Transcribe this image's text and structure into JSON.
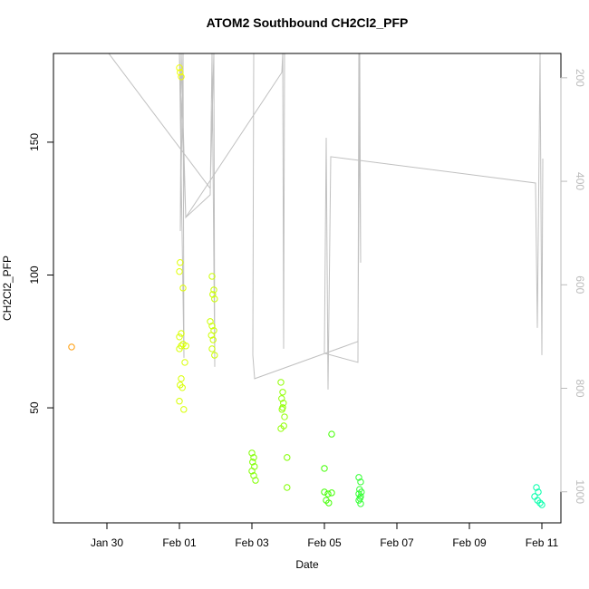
{
  "chart_data": {
    "type": "scatter",
    "title": "ATOM2 Southbound CH2Cl2_PFP",
    "x_label": "Date",
    "y_label": "CH2Cl2_PFP",
    "x": [
      29.025,
      32.0,
      32.02,
      32.05,
      32.02,
      32.0,
      32.05,
      32.0,
      32.1,
      32.05,
      32.0,
      32.15,
      32.05,
      32.02,
      32.08,
      32.0,
      32.12,
      32.1,
      32.18,
      32.9,
      32.95,
      32.92,
      32.97,
      32.85,
      32.9,
      32.95,
      32.88,
      32.93,
      32.9,
      32.97,
      34.0,
      34.05,
      34.02,
      34.07,
      34.0,
      34.05,
      34.1,
      34.8,
      34.85,
      34.82,
      34.87,
      34.85,
      34.83,
      34.9,
      34.88,
      34.8,
      34.97,
      34.97,
      36.0,
      36.0,
      36.1,
      36.05,
      36.12,
      36.2,
      36.2,
      36.95,
      37.0,
      36.97,
      37.02,
      36.95,
      37.0,
      36.98,
      36.95,
      37.0,
      41.85,
      41.9,
      41.8,
      41.88,
      41.95,
      42.0
    ],
    "values": [
      72.9,
      178.0,
      176.3,
      174.6,
      104.7,
      101.3,
      78.0,
      76.7,
      74.0,
      73.3,
      72.2,
      67.1,
      61.0,
      58.6,
      57.6,
      52.5,
      49.4,
      95.1,
      73.3,
      99.5,
      94.4,
      92.7,
      91.0,
      82.5,
      80.8,
      79.1,
      77.3,
      75.6,
      72.2,
      69.8,
      33.0,
      31.3,
      29.6,
      27.9,
      26.2,
      24.5,
      22.7,
      59.6,
      55.9,
      53.5,
      51.8,
      50.1,
      49.4,
      46.6,
      43.2,
      42.2,
      31.3,
      20.0,
      27.2,
      18.3,
      17.6,
      15.2,
      14.2,
      18.0,
      40.1,
      23.8,
      22.1,
      19.3,
      18.3,
      17.6,
      16.6,
      15.9,
      15.2,
      13.9,
      20.0,
      18.3,
      16.6,
      15.2,
      14.2,
      13.5
    ],
    "colors": [
      "#ff9900",
      "#f0ff00",
      "#f0ff00",
      "#f0ff00",
      "#e0ff00",
      "#e0ff00",
      "#d8ff00",
      "#d8ff00",
      "#d8ff00",
      "#d8ff00",
      "#d8ff00",
      "#d8ff00",
      "#d8ff00",
      "#d8ff00",
      "#d8ff00",
      "#d8ff00",
      "#d8ff00",
      "#e0ff00",
      "#d8ff00",
      "#ccff00",
      "#ccff00",
      "#ccff00",
      "#ccff00",
      "#ccff00",
      "#ccff00",
      "#ccff00",
      "#ccff00",
      "#ccff00",
      "#ccff00",
      "#ccff00",
      "#80ff00",
      "#80ff00",
      "#80ff00",
      "#80ff00",
      "#80ff00",
      "#80ff00",
      "#80ff00",
      "#90ff00",
      "#90ff00",
      "#90ff00",
      "#90ff00",
      "#90ff00",
      "#90ff00",
      "#90ff00",
      "#90ff00",
      "#90ff00",
      "#80ff00",
      "#80ff00",
      "#40ff00",
      "#40ff00",
      "#40ff00",
      "#40ff00",
      "#40ff00",
      "#40ff00",
      "#40ff00",
      "#33ff33",
      "#33ff33",
      "#33ff33",
      "#33ff33",
      "#33ff33",
      "#33ff33",
      "#33ff33",
      "#33ff33",
      "#33ff33",
      "#00ffaa",
      "#00ffaa",
      "#00ffaa",
      "#00ffaa",
      "#00ffaa",
      "#00ffaa"
    ],
    "xlim": [
      28.525,
      42.525
    ],
    "xticks": [
      {
        "value": 30,
        "label": "Jan 30"
      },
      {
        "value": 32,
        "label": "Feb 01"
      },
      {
        "value": 34,
        "label": "Feb 03"
      },
      {
        "value": 36,
        "label": "Feb 05"
      },
      {
        "value": 38,
        "label": "Feb 07"
      },
      {
        "value": 40,
        "label": "Feb 09"
      },
      {
        "value": 42,
        "label": "Feb 11"
      }
    ],
    "ylim": [
      6.7,
      183.4
    ],
    "yticks": [
      50,
      100,
      150
    ],
    "y2lim": [
      1060,
      153
    ],
    "y2ticks": [
      200,
      400,
      600,
      800,
      1000
    ],
    "line": {
      "axis": "y2",
      "color": "#c0c0c0",
      "x": [
        30.05,
        32.85,
        32.95,
        32.975,
        32.9,
        32.85,
        32.175,
        32.05,
        32.025,
        32.1,
        32.125,
        32.0,
        32.175,
        34.825,
        34.85,
        34.875,
        34.9,
        34.05,
        34.025,
        34.075,
        36.925,
        36.975,
        37.0,
        36.95,
        36.925,
        36.0,
        36.05,
        36.1,
        36.175,
        41.825,
        41.875,
        41.95,
        42.0,
        42.025
      ],
      "values": [
        153,
        413.8,
        153,
        758.6,
        153,
        426.1,
        469.8,
        153,
        496.1,
        153,
        741.1,
        153,
        469.8,
        189.8,
        153,
        723.6,
        153,
        153,
        735.9,
        781.4,
        709.6,
        153,
        557.3,
        153,
        749.9,
        732.4,
        315.8,
        802.4,
        352.5,
        403.3,
        683.4,
        153,
        735.9,
        356.1
      ]
    }
  }
}
